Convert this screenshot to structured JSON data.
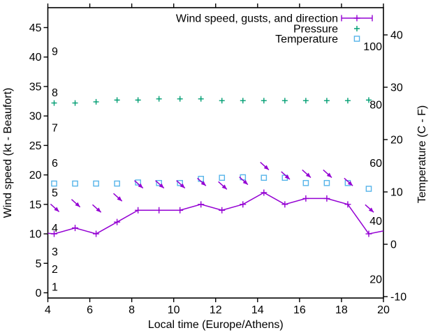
{
  "figure": {
    "background": "#ffffff",
    "border_color": "#000000",
    "xlabel": "Local time (Europe/Athens)",
    "ylabel_left": "Wind speed (kt - Beaufort)",
    "ylabel_right": "Temperature (C - F)"
  },
  "legend": {
    "position": "top-right-inside",
    "entries": [
      {
        "label": "Wind speed, gusts, and direction",
        "series": "wind",
        "color": "#9400d3"
      },
      {
        "label": "Pressure",
        "series": "pressure",
        "color": "#009e73"
      },
      {
        "label": "Temperature",
        "series": "temperature",
        "color": "#56b4e9"
      }
    ]
  },
  "chart_data": {
    "type": "line",
    "title": "",
    "x_axis": {
      "label": "Local time (Europe/Athens)",
      "ticks": [
        4,
        6,
        8,
        10,
        12,
        14,
        16,
        18,
        20
      ],
      "range": [
        4,
        20
      ]
    },
    "y_axis_left": {
      "label": "Wind speed (kt - Beaufort)",
      "ticks": [
        0,
        5,
        10,
        15,
        20,
        25,
        30,
        35,
        40,
        45
      ],
      "range": [
        -0.9,
        48.4
      ]
    },
    "y_axis_right": {
      "label": "Temperature (C - F)",
      "ticks": [
        -10,
        0,
        10,
        20,
        30,
        40
      ],
      "range": [
        -10.3,
        45.2
      ]
    },
    "beaufort_scale_labels": [
      {
        "label": "1",
        "kt": 1
      },
      {
        "label": "2",
        "kt": 4
      },
      {
        "label": "3",
        "kt": 7
      },
      {
        "label": "4",
        "kt": 11
      },
      {
        "label": "5",
        "kt": 17
      },
      {
        "label": "6",
        "kt": 22
      },
      {
        "label": "7",
        "kt": 28
      },
      {
        "label": "8",
        "kt": 34
      },
      {
        "label": "9",
        "kt": 41
      }
    ],
    "fahrenheit_scale_labels": [
      {
        "label": "20",
        "f": 20
      },
      {
        "label": "40",
        "f": 40
      },
      {
        "label": "60",
        "f": 60
      },
      {
        "label": "80",
        "f": 80
      },
      {
        "label": "100",
        "f": 100
      }
    ],
    "x": [
      4.3,
      5.3,
      6.3,
      7.3,
      8.3,
      9.3,
      10.3,
      11.3,
      12.3,
      13.3,
      14.3,
      15.3,
      16.3,
      17.3,
      18.3,
      19.3
    ],
    "series": [
      {
        "name": "Wind speed",
        "style": "linespoints",
        "marker": "plus",
        "color": "#9400d3",
        "values_kt": [
          10,
          11,
          10,
          12,
          14,
          14,
          14,
          15,
          14,
          15,
          17,
          15,
          16,
          16,
          15,
          10
        ],
        "edge_points": [
          {
            "x": 4.0,
            "kt": 10.1
          },
          {
            "x": 20.0,
            "kt": 10.5
          }
        ]
      },
      {
        "name": "Wind gusts and direction",
        "style": "vectors",
        "marker": "arrow",
        "color": "#9400d3",
        "gust_kt": [
          14.4,
          15.2,
          14.3,
          16.2,
          18.4,
          18.4,
          18.4,
          18.8,
          18.2,
          19.0,
          21.5,
          19.9,
          20.2,
          20.2,
          18.8,
          14.3
        ],
        "direction": "all arrows point down-right (wind from NW)",
        "arrow_angle_deg": 42
      },
      {
        "name": "Pressure",
        "style": "points",
        "marker": "plus",
        "color": "#009e73",
        "plotted_y_left_axis_units": [
          32.2,
          32.2,
          32.4,
          32.7,
          32.7,
          32.9,
          32.9,
          32.9,
          32.6,
          32.6,
          32.6,
          32.6,
          32.6,
          32.6,
          32.6,
          32.7
        ],
        "note": "no pressure scale is drawn; values are plotted positions read in left-axis units"
      },
      {
        "name": "Temperature",
        "style": "points",
        "marker": "open-square",
        "color": "#56b4e9",
        "values_c": [
          11.6,
          11.6,
          11.6,
          11.6,
          11.8,
          11.7,
          11.7,
          12.5,
          12.7,
          12.8,
          12.7,
          12.7,
          11.7,
          11.7,
          11.7,
          10.6
        ]
      }
    ]
  }
}
